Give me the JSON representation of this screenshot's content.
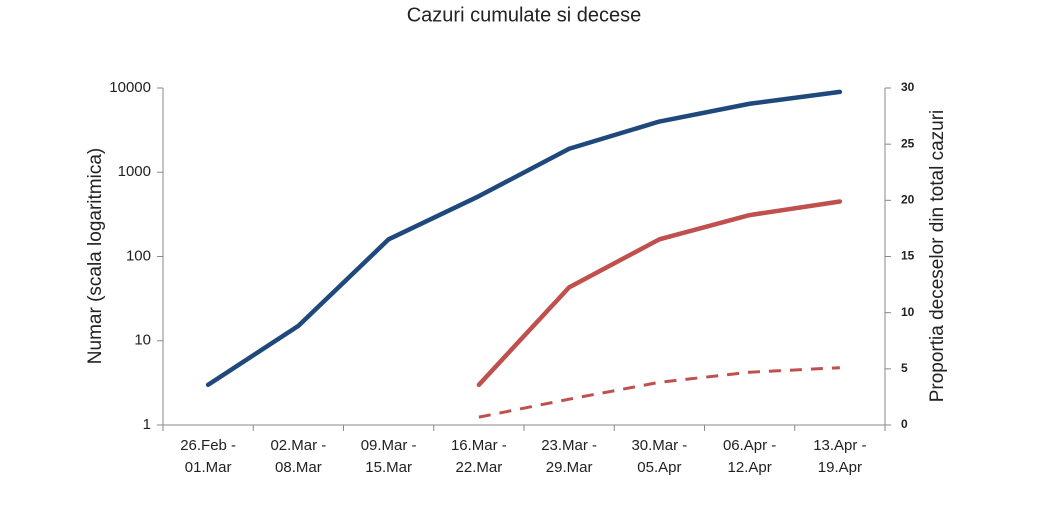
{
  "chart_data": {
    "type": "line",
    "title": "Cazuri cumulate si decese",
    "y_label": "Numar (scala logaritmica)",
    "y2_label": "Proportia deceselor din total cazuri",
    "categories": [
      "26.Feb -\n01.Mar",
      "02.Mar -\n08.Mar",
      "09.Mar -\n15.Mar",
      "16.Mar -\n22.Mar",
      "23.Mar -\n29.Mar",
      "30.Mar -\n05.Apr",
      "06.Apr -\n12.Apr",
      "13.Apr -\n19.Apr"
    ],
    "ylim": [
      1,
      10000
    ],
    "yticks": [
      1,
      10,
      100,
      1000,
      10000
    ],
    "y_log": true,
    "y2lim": [
      0,
      30
    ],
    "y2ticks": [
      0,
      5,
      10,
      15,
      20,
      25,
      30
    ],
    "series": [
      {
        "color": "#1f497d",
        "style": "solid",
        "values": [
          3,
          15,
          160,
          520,
          1900,
          4000,
          6500,
          9000
        ]
      },
      {
        "color": "#c0504d",
        "style": "solid",
        "values": [
          null,
          null,
          null,
          3,
          43,
          160,
          310,
          450
        ]
      },
      {
        "color": "#c0504d",
        "style": "dashed",
        "axis": "y2",
        "values": [
          null,
          null,
          null,
          0.7,
          2.3,
          3.8,
          4.7,
          5.1
        ]
      }
    ]
  }
}
